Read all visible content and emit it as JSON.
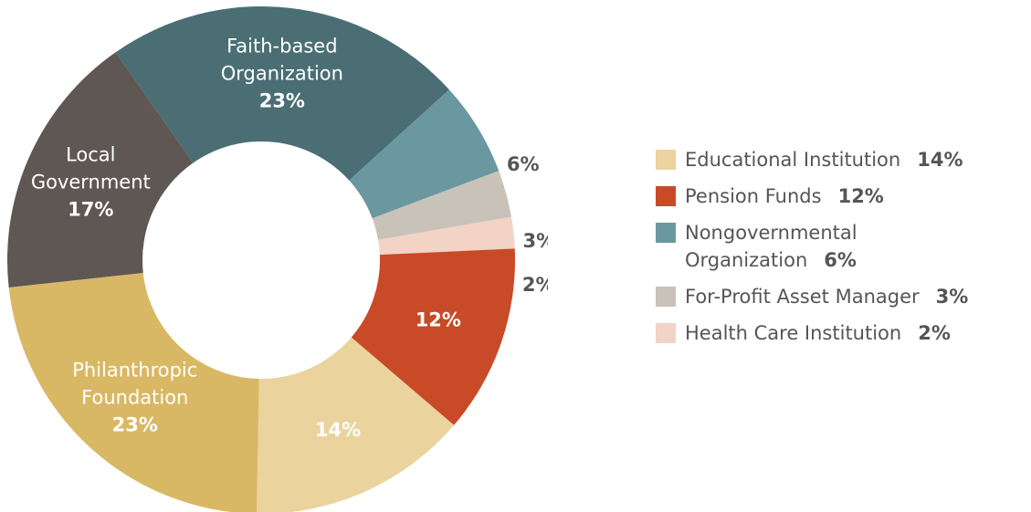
{
  "chart_data": {
    "type": "donut",
    "categories": [
      "Faith-based\nOrganization",
      "Nongovernmental\nOrganization",
      "For-Profit Asset Manager",
      "Health Care Institution",
      "Pension Funds",
      "Educational Institution",
      "Philanthropic\nFoundation",
      "Local\nGovernment"
    ],
    "values": [
      23,
      6,
      3,
      2,
      12,
      14,
      23,
      17
    ],
    "value_labels": [
      "23%",
      "6%",
      "3%",
      "2%",
      "12%",
      "14%",
      "23%",
      "17%"
    ],
    "colors": [
      "#4a6e74",
      "#6b98a0",
      "#c9c2b9",
      "#f2d3c6",
      "#c84a27",
      "#ebd39e",
      "#d9b865",
      "#5f5754"
    ],
    "legend_order": [
      5,
      4,
      1,
      2,
      3
    ]
  }
}
